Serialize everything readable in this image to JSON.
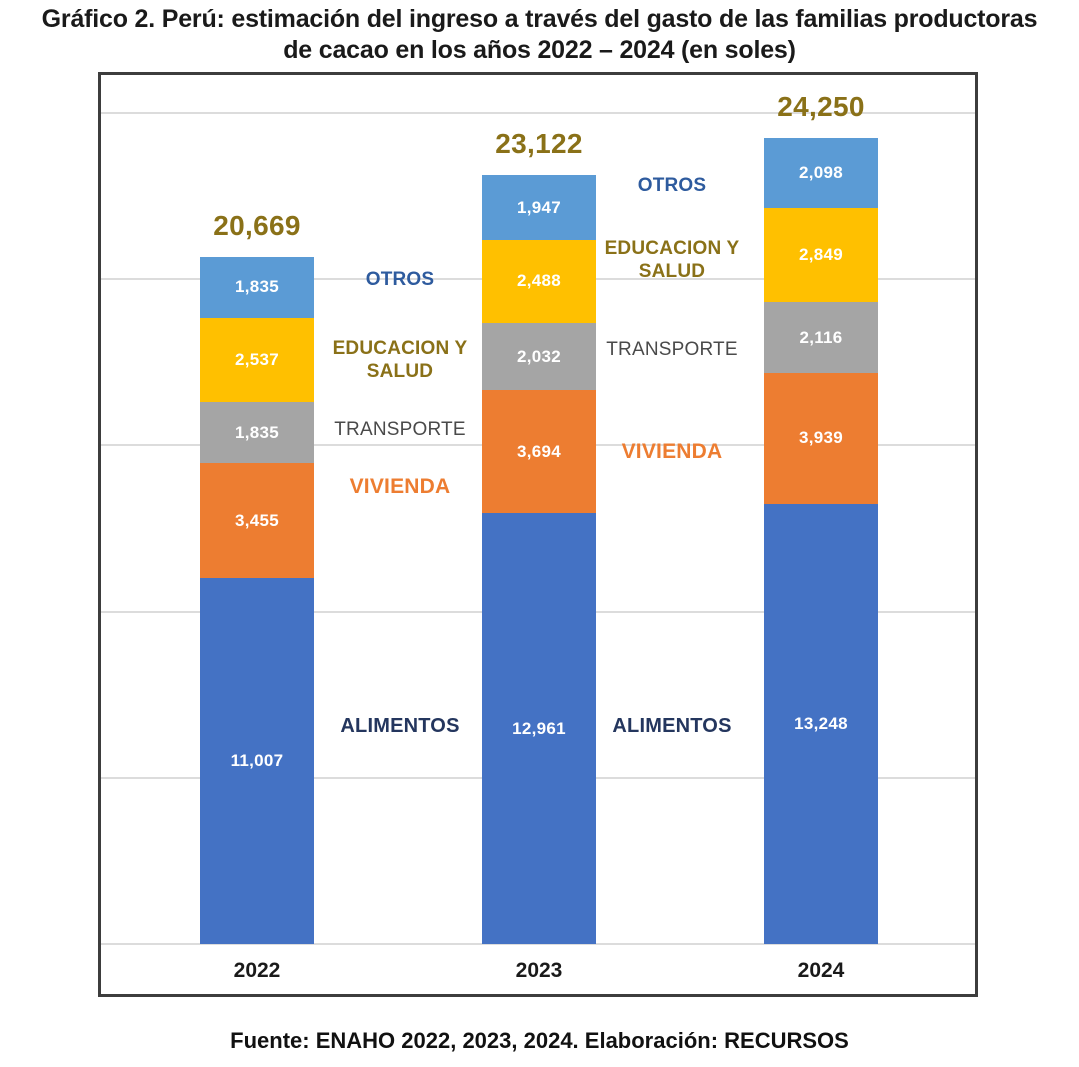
{
  "title": {
    "line1": "Gráfico 2. Perú: estimación del ingreso a través del gasto de las familias productoras",
    "line2": "de cacao en los años 2022 – 2024 (en soles)"
  },
  "footer": "Fuente: ENAHO 2022, 2023, 2024. Elaboración: RECURSOS",
  "chart_data": {
    "type": "bar",
    "subtype": "stacked-column",
    "title": "Gráfico 2. Perú: estimación del ingreso a través del gasto de las familias productoras de cacao en los años 2022 – 2024 (en soles)",
    "xlabel": "",
    "ylabel": "",
    "categories": [
      "2022",
      "2023",
      "2024"
    ],
    "series": [
      {
        "name": "ALIMENTOS",
        "color": "#4472C4",
        "label_color": "#24365E",
        "values": [
          11007,
          12961,
          13248
        ]
      },
      {
        "name": "VIVIENDA",
        "color": "#ED7D31",
        "label_color": "#ED7D31",
        "values": [
          3455,
          3694,
          3939
        ]
      },
      {
        "name": "TRANSPORTE",
        "color": "#A5A5A5",
        "label_color": "#4A4A4A",
        "values": [
          1835,
          2032,
          2116
        ]
      },
      {
        "name": "EDUCACION Y SALUD",
        "color": "#FFC000",
        "label_color": "#8A7118",
        "values": [
          2537,
          2488,
          2849
        ]
      },
      {
        "name": "OTROS",
        "color": "#5B9BD5",
        "label_color": "#2E5B9E",
        "values": [
          1835,
          1947,
          2098
        ]
      }
    ],
    "totals": [
      20669,
      23122,
      24250
    ],
    "totals_color": "#8A7118",
    "value_label_color": "#FFFFFF",
    "ylim": [
      0,
      26200
    ],
    "grid_step": 5000,
    "grid": true,
    "legend_position": "inline-annotations",
    "number_format": "thousands-comma",
    "units": "soles"
  }
}
